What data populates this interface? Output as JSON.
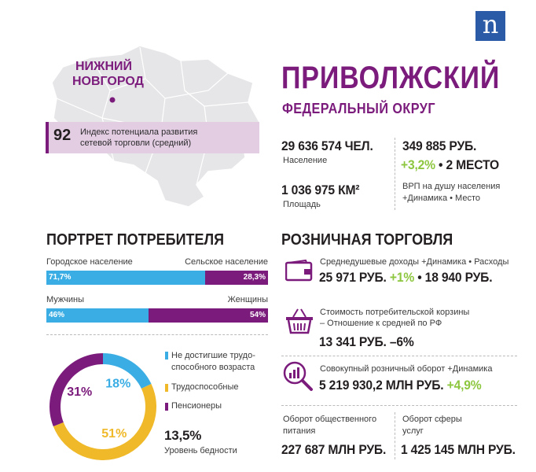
{
  "logo": {
    "letter": "n",
    "color": "#2b5aa7"
  },
  "map": {
    "city": [
      "НИЖНИЙ",
      "НОВГОРОД"
    ],
    "index_value": "92",
    "index_text": [
      "Индекс потенциала развития",
      "сетевой торговли (средний)"
    ]
  },
  "header": {
    "title": "ПРИВОЛЖСКИЙ",
    "subtitle": "ФЕДЕРАЛЬНЫЙ ОКРУГ"
  },
  "stats": {
    "population": {
      "value": "29 636 574 ЧЕЛ.",
      "label": "Население"
    },
    "area": {
      "value": "1 036 975 КМ²",
      "label": "Площадь"
    },
    "grp": {
      "value": "349 885 РУБ.",
      "change": "+3,2%",
      "sep": " • ",
      "place": "2 МЕСТО",
      "label": [
        "ВРП на душу населения",
        "+Динамика • Место"
      ]
    }
  },
  "portrait": {
    "title": "ПОРТРЕТ ПОТРЕБИТЕЛЯ",
    "urban": {
      "label_left": "Городское население",
      "label_right": "Сельское население",
      "left": "71,7%",
      "right": "28,3%",
      "left_frac": 0.717
    },
    "gender": {
      "label_left": "Мужчины",
      "label_right": "Женщины",
      "left": "46%",
      "right": "54%",
      "left_frac": 0.46
    },
    "donut": {
      "segments": [
        {
          "label": "Не достигшие трудоспособного возраста",
          "label_lines": [
            "Не достигшие трудо-",
            "способного возраста"
          ],
          "value": 18,
          "text": "18%",
          "color": "#3aaee4"
        },
        {
          "label": "Трудоспособные",
          "label_lines": [
            "Трудоспособные"
          ],
          "value": 51,
          "text": "51%",
          "color": "#f0b929"
        },
        {
          "label": "Пенсионеры",
          "label_lines": [
            "Пенсионеры"
          ],
          "value": 31,
          "text": "31%",
          "color": "#7b1c7c"
        }
      ]
    },
    "poverty": {
      "value": "13,5%",
      "label": "Уровень бедности"
    }
  },
  "retail": {
    "title": "РОЗНИЧНАЯ ТОРГОВЛЯ",
    "income": {
      "label": "Среднедушевые доходы +Динамика • Расходы",
      "value": "25 971 РУБ.",
      "change": "+1%",
      "rest": " • 18 940 РУБ."
    },
    "basket": {
      "label": [
        "Стоимость потребительской корзины",
        "– Отношение к средней по РФ"
      ],
      "value": "13 341 РУБ. –6%"
    },
    "turnover": {
      "label": "Совокупный розничный оборот +Динамика",
      "value": "5 219 930,2 МЛН РУБ.",
      "change": "+4,9%"
    },
    "catering": {
      "label": [
        "Оборот общественного",
        "питания"
      ],
      "value": "227 687 МЛН РУБ."
    },
    "services": {
      "label": [
        "Оборот сферы",
        "услуг"
      ],
      "value": "1 425 145 МЛН РУБ."
    }
  },
  "colors": {
    "purple": "#7b1c7c",
    "blue": "#3aaee4",
    "yellow": "#f0b929",
    "green": "#8dc63f",
    "map_gray": "#e6e6e8",
    "index_bg": "#e3cde3"
  }
}
